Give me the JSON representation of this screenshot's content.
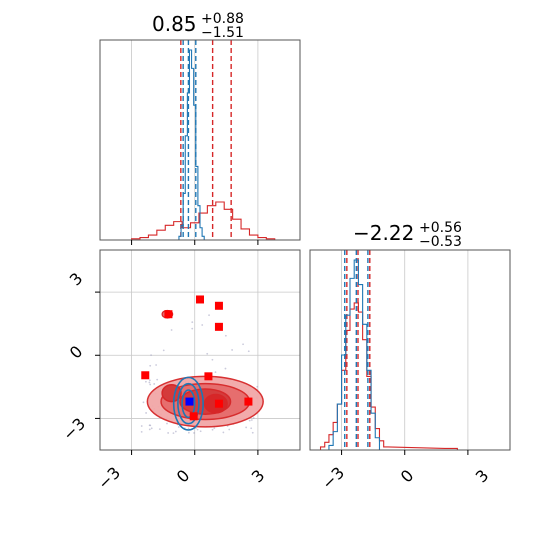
{
  "colors": {
    "red": "#d62728",
    "red_fill_light": "#f2a7a7",
    "red_fill_mid": "#e66b6b",
    "red_fill_dark": "#d43a3a",
    "blue": "#1f77b4",
    "marker_red": "#ff0000",
    "marker_blue": "#0000ff",
    "grid": "#c8c8c8",
    "frame": "#555555"
  },
  "chart_data": {
    "type": "corner",
    "grid": true,
    "ticks": [
      -3,
      0,
      3
    ],
    "tick_labels": [
      "−3",
      "0",
      "3"
    ],
    "x_range": [
      -4.5,
      5
    ],
    "y_range": [
      -4.5,
      5
    ],
    "panels": {
      "hist_x": {
        "type": "histogram",
        "title": {
          "median": "0.85",
          "plus": "+0.88",
          "minus": "−1.51"
        },
        "xlim": [
          -4.5,
          5
        ],
        "series": [
          {
            "name": "",
            "color": "#d62728",
            "bin_centers": [
              -2.8,
              -2.4,
              -2.0,
              -1.6,
              -1.2,
              -0.8,
              -0.4,
              0.0,
              0.4,
              0.8,
              1.2,
              1.6,
              2.0,
              2.4,
              2.8,
              3.2,
              3.6
            ],
            "counts": [
              1,
              2,
              4,
              8,
              12,
              15,
              10,
              14,
              22,
              28,
              31,
              25,
              17,
              9,
              4,
              2,
              1
            ],
            "quantiles": [
              -0.66,
              0.85,
              1.73
            ]
          },
          {
            "name": "",
            "color": "#1f77b4",
            "bin_centers": [
              -0.7,
              -0.6,
              -0.5,
              -0.4,
              -0.3,
              -0.2,
              -0.1,
              0.0,
              0.1,
              0.2,
              0.3,
              0.4
            ],
            "counts": [
              3,
              12,
              38,
              85,
              120,
              155,
              140,
              110,
              60,
              28,
              10,
              3
            ],
            "quantiles": [
              -0.55,
              -0.3,
              0.05
            ]
          }
        ]
      },
      "hist_y": {
        "type": "histogram",
        "title": {
          "median": "−2.22",
          "plus": "+0.56",
          "minus": "−0.53"
        },
        "xlim": [
          -4.5,
          5
        ],
        "series": [
          {
            "name": "",
            "color": "#d62728",
            "bin_centers": [
              -3.9,
              -3.7,
              -3.5,
              -3.3,
              -3.1,
              -2.9,
              -2.7,
              -2.5,
              -2.3,
              -2.1,
              -1.9,
              -1.7,
              -1.5,
              -1.3,
              -1.1,
              -0.9,
              2.0,
              2.4
            ],
            "counts": [
              2,
              5,
              10,
              18,
              30,
              52,
              78,
              92,
              96,
              90,
              72,
              48,
              28,
              14,
              6,
              2,
              1,
              1
            ],
            "quantiles": [
              -2.75,
              -2.22,
              -1.66
            ]
          },
          {
            "name": "",
            "color": "#1f77b4",
            "bin_centers": [
              -3.5,
              -3.3,
              -3.1,
              -2.9,
              -2.7,
              -2.5,
              -2.3,
              -2.1,
              -1.9,
              -1.7,
              -1.5,
              -1.3
            ],
            "counts": [
              3,
              12,
              30,
              62,
              88,
              112,
              124,
              108,
              82,
              52,
              24,
              8
            ],
            "quantiles": [
              -2.85,
              -2.3,
              -1.75
            ]
          }
        ]
      },
      "joint": {
        "type": "scatter",
        "red_points": [
          [
            -2.35,
            -0.95
          ],
          [
            -1.25,
            1.95
          ],
          [
            0.25,
            2.65
          ],
          [
            1.15,
            2.35
          ],
          [
            1.15,
            1.35
          ],
          [
            0.65,
            -1.0
          ],
          [
            -0.05,
            -2.9
          ],
          [
            1.15,
            -2.3
          ],
          [
            2.55,
            -2.2
          ]
        ],
        "blue_points": [
          [
            -0.25,
            -2.2
          ]
        ],
        "red_density_centers": [
          [
            0.9,
            -2.2
          ],
          [
            -1.1,
            -1.8
          ]
        ],
        "blue_density_center": [
          -0.3,
          -2.3
        ]
      }
    }
  }
}
